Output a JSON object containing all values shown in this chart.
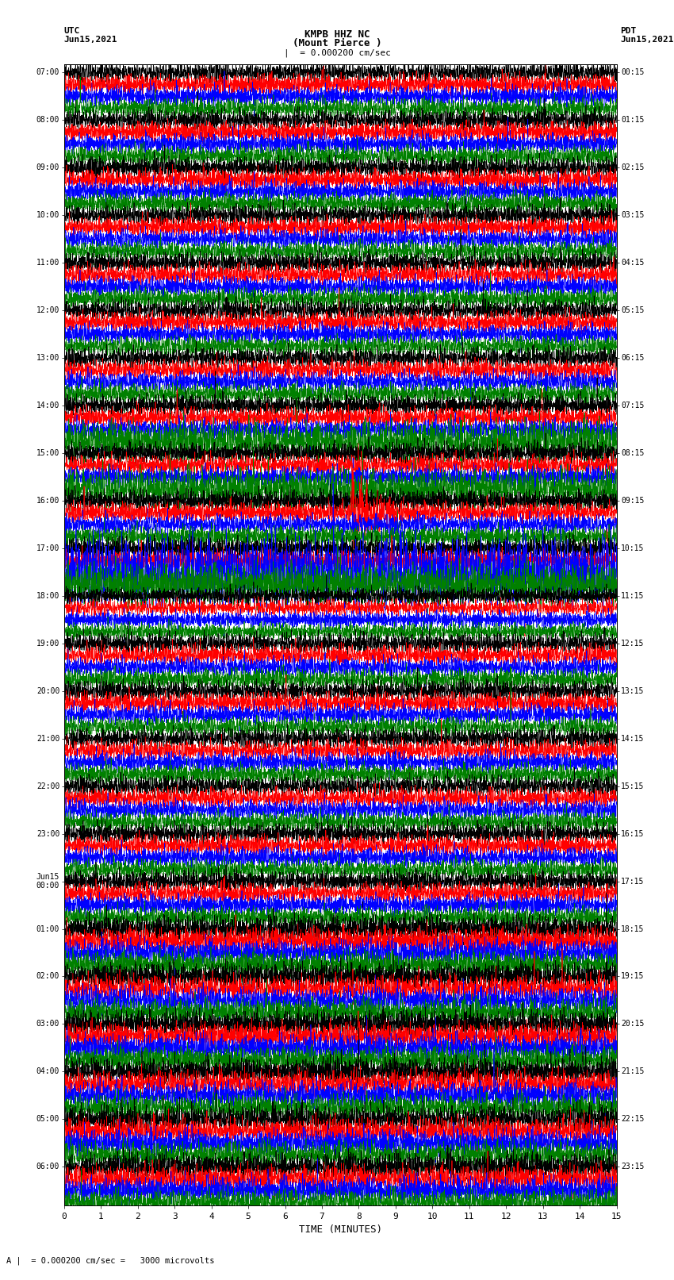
{
  "title_line1": "KMPB HHZ NC",
  "title_line2": "(Mount Pierce )",
  "scale_label": "|  = 0.000200 cm/sec",
  "bottom_label": "A |  = 0.000200 cm/sec =   3000 microvolts",
  "xlabel": "TIME (MINUTES)",
  "left_times": [
    "07:00",
    "08:00",
    "09:00",
    "10:00",
    "11:00",
    "12:00",
    "13:00",
    "14:00",
    "15:00",
    "16:00",
    "17:00",
    "18:00",
    "19:00",
    "20:00",
    "21:00",
    "22:00",
    "23:00",
    "Jun15\n00:00",
    "01:00",
    "02:00",
    "03:00",
    "04:00",
    "05:00",
    "06:00"
  ],
  "right_times": [
    "00:15",
    "01:15",
    "02:15",
    "03:15",
    "04:15",
    "05:15",
    "06:15",
    "07:15",
    "08:15",
    "09:15",
    "10:15",
    "11:15",
    "12:15",
    "13:15",
    "14:15",
    "15:15",
    "16:15",
    "17:15",
    "18:15",
    "19:15",
    "20:15",
    "21:15",
    "22:15",
    "23:15"
  ],
  "colors": [
    "black",
    "red",
    "blue",
    "green"
  ],
  "n_rows": 24,
  "traces_per_row": 4,
  "bg_color": "white",
  "fig_width": 8.5,
  "fig_height": 16.13,
  "dpi": 100,
  "trace_amplitude": 0.1,
  "noise_seed": 42,
  "minute_grid_color": "#888888",
  "minute_grid_lw": 0.4
}
